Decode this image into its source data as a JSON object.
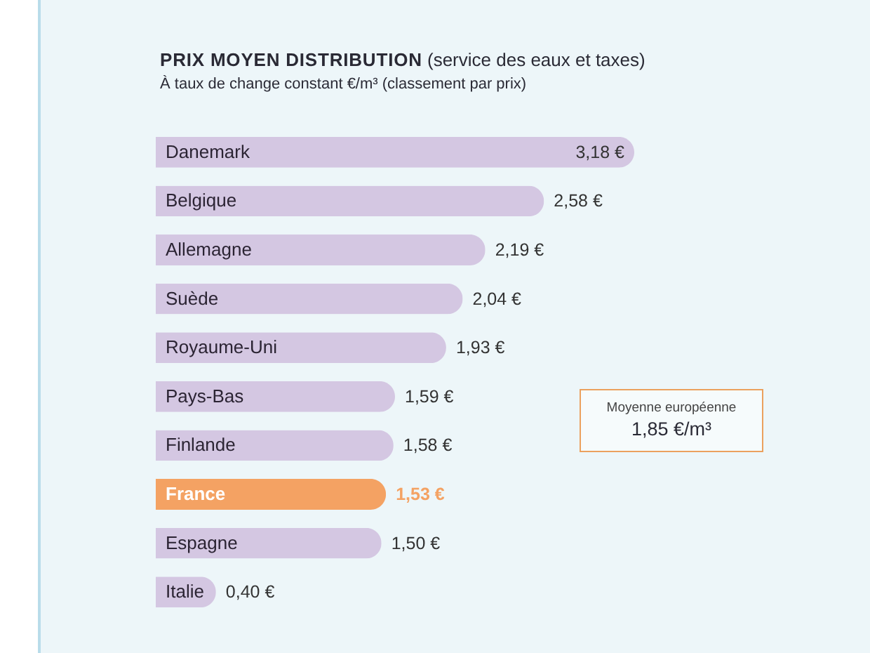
{
  "chart_data": {
    "type": "bar",
    "orientation": "horizontal",
    "title": "PRIX MOYEN DISTRIBUTION (service des eaux et taxes)",
    "subtitle": "À taux de change constant €/m³ (classement par prix)",
    "categories": [
      "Danemark",
      "Belgique",
      "Allemagne",
      "Suède",
      "Royaume-Uni",
      "Pays-Bas",
      "Finlande",
      "France",
      "Espagne",
      "Italie"
    ],
    "values": [
      3.18,
      2.58,
      2.19,
      2.04,
      1.93,
      1.59,
      1.58,
      1.53,
      1.5,
      0.4
    ],
    "colors": [
      "#d4c7e2",
      "#d4c7e2",
      "#d4c7e2",
      "#d4c7e2",
      "#d4c7e2",
      "#d4c7e2",
      "#d4c7e2",
      "#f4a263",
      "#d4c7e2",
      "#d4c7e2"
    ],
    "value_labels": [
      "3,18 €",
      "2,58 €",
      "2,19 €",
      "2,04 €",
      "1,93 €",
      "1,59 €",
      "1,58 €",
      "1,53 €",
      "1,50 €",
      "0,40 €"
    ],
    "tick_labels": "y",
    "annotations": [
      "Moyenne européenne\n1,85 €/m³"
    ]
  }
}
